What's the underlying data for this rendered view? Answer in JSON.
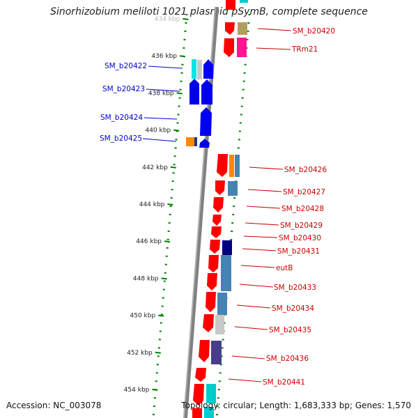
{
  "title": "Sinorhizobium meliloti 1021 plasmid pSymB, complete sequence",
  "footer": {
    "accession": "Accession: NC_003078",
    "topology": "Topology: circular; Length: 1,683,333 bp; Genes: 1,570"
  },
  "colors": {
    "forward_gene": "#ff0000",
    "reverse_gene": "#0000ff",
    "backbone": "#888888",
    "tick": "#008000",
    "left_label": "#0000cc",
    "right_label": "#cc0000"
  },
  "ruler": {
    "ticks": [
      {
        "kbp": 434,
        "label": "434 kbp"
      },
      {
        "kbp": 436,
        "label": "436 kbp"
      },
      {
        "kbp": 438,
        "label": "438 kbp"
      },
      {
        "kbp": 440,
        "label": "440 kbp"
      },
      {
        "kbp": 442,
        "label": "442 kbp"
      },
      {
        "kbp": 444,
        "label": "444 kbp"
      },
      {
        "kbp": 446,
        "label": "446 kbp"
      },
      {
        "kbp": 448,
        "label": "448 kbp"
      },
      {
        "kbp": 450,
        "label": "450 kbp"
      },
      {
        "kbp": 452,
        "label": "452 kbp"
      },
      {
        "kbp": 454,
        "label": "454 kbp"
      }
    ]
  },
  "left_labels": [
    {
      "name": "SM_b20422"
    },
    {
      "name": "SM_b20423"
    },
    {
      "name": "SM_b20424"
    },
    {
      "name": "SM_b20425"
    }
  ],
  "right_labels": [
    {
      "name": "SM_b20420"
    },
    {
      "name": "TRm21"
    },
    {
      "name": "SM_b20426"
    },
    {
      "name": "SM_b20427"
    },
    {
      "name": "SM_b20428"
    },
    {
      "name": "SM_b20429"
    },
    {
      "name": "SM_b20430"
    },
    {
      "name": "SM_b20431"
    },
    {
      "name": "eutB"
    },
    {
      "name": "SM_b20433"
    },
    {
      "name": "SM_b20434"
    },
    {
      "name": "SM_b20435"
    },
    {
      "name": "SM_b20436"
    },
    {
      "name": "SM_b20441"
    }
  ]
}
